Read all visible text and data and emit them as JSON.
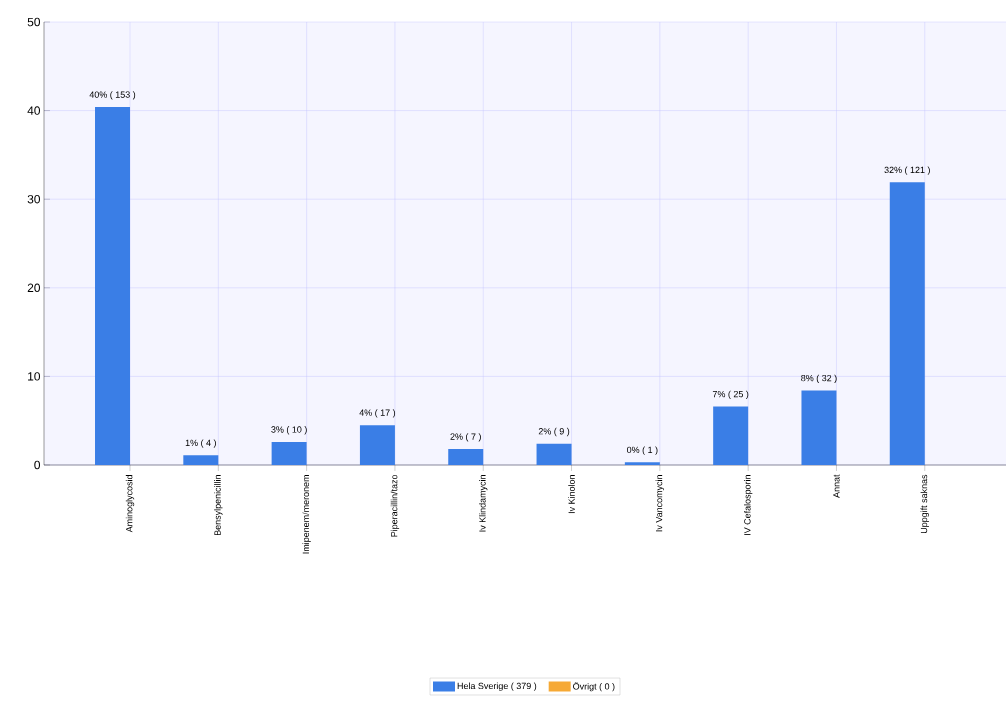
{
  "chart_data": {
    "type": "bar",
    "categories": [
      "Aminoglycosid",
      "Bensylpenicillin",
      "Imipenem/meronem",
      "Piperacillin/tazo",
      "Iv Klindamycin",
      "Iv Kinolon",
      "Iv Vancomycin",
      "IV Cefalosporin",
      "Annat",
      "Uppgift saknas"
    ],
    "series": [
      {
        "name": "Hela Sverige ( 379 )",
        "color": "#3a7ee6",
        "values": [
          40.4,
          1.1,
          2.6,
          4.5,
          1.8,
          2.4,
          0.3,
          6.6,
          8.4,
          31.9
        ],
        "value_labels": [
          "40% ( 153 )",
          "1% ( 4 )",
          "3% ( 10 )",
          "4% ( 17 )",
          "2% ( 7 )",
          "2% ( 9 )",
          "0% ( 1 )",
          "7% ( 25 )",
          "8% ( 32 )",
          "32% ( 121 )"
        ]
      },
      {
        "name": "Övrigt ( 0 )",
        "color": "#f6a935",
        "values": [
          0,
          0,
          0,
          0,
          0,
          0,
          0,
          0,
          0,
          0
        ]
      }
    ],
    "ylim": [
      0,
      50
    ],
    "yticks": [
      0,
      10,
      20,
      30,
      40,
      50
    ],
    "grid": true,
    "legend": "bottom"
  }
}
